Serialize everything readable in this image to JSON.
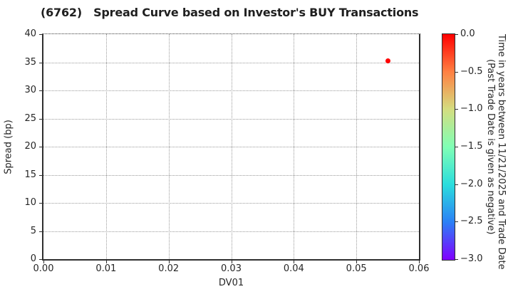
{
  "chart_data": {
    "type": "scatter",
    "title": "(6762)   Spread Curve based on Investor's BUY Transactions",
    "xlabel": "DV01",
    "ylabel": "Spread (bp)",
    "xlim": [
      0.0,
      0.06
    ],
    "ylim": [
      0,
      40
    ],
    "grid": {
      "show": true,
      "style": "dotted"
    },
    "x_ticks": {
      "values": [
        0.0,
        0.01,
        0.02,
        0.03,
        0.04,
        0.05,
        0.06
      ],
      "labels": [
        "0.00",
        "0.01",
        "0.02",
        "0.03",
        "0.04",
        "0.05",
        "0.06"
      ]
    },
    "y_ticks": {
      "values": [
        0,
        5,
        10,
        15,
        20,
        25,
        30,
        35,
        40
      ],
      "labels": [
        "0",
        "5",
        "10",
        "15",
        "20",
        "25",
        "30",
        "35",
        "40"
      ]
    },
    "series": [
      {
        "name": "buy-transaction-points",
        "points": [
          {
            "x": 0.055,
            "y": 35.2,
            "color_value": 0.0,
            "color": "#ff0000"
          }
        ]
      }
    ],
    "colorbar": {
      "title_lines": [
        "Time in years between 11/21/2025 and Trade Date",
        "(Past Trade Date is given as negative)"
      ],
      "colormap": "rainbow",
      "range": [
        -3.0,
        0.0
      ],
      "ticks": {
        "values": [
          0.0,
          -0.5,
          -1.0,
          -1.5,
          -2.0,
          -2.5,
          -3.0
        ],
        "labels": [
          "0.0",
          "−0.5",
          "−1.0",
          "−1.5",
          "−2.0",
          "−2.5",
          "−3.0"
        ]
      },
      "gradient": [
        {
          "pos": 0.0,
          "color": "#ff0000"
        },
        {
          "pos": 0.167,
          "color": "#ff8042"
        },
        {
          "pos": 0.333,
          "color": "#d4dd80"
        },
        {
          "pos": 0.5,
          "color": "#80ffb5"
        },
        {
          "pos": 0.667,
          "color": "#2bdddd"
        },
        {
          "pos": 0.833,
          "color": "#2b80f6"
        },
        {
          "pos": 1.0,
          "color": "#8000ff"
        }
      ]
    },
    "colors": {
      "marker": "#ff0000",
      "grid": "#9a9a9a",
      "spine": "#2f2f2f",
      "text": "#262626"
    }
  }
}
